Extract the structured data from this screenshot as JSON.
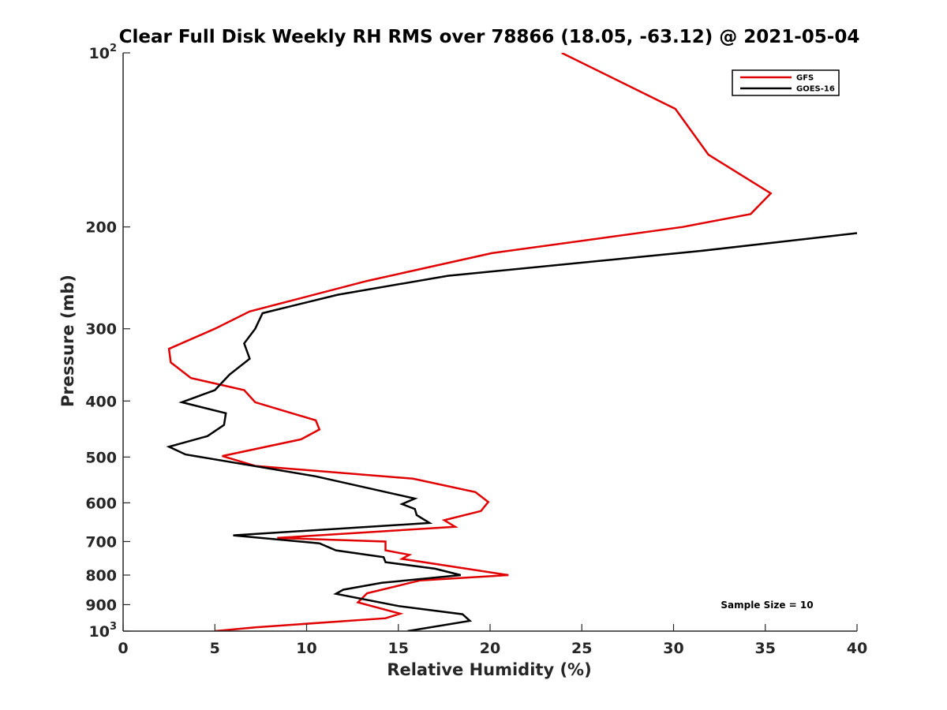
{
  "chart_data": {
    "type": "line",
    "title": "Clear Full Disk Weekly RH RMS over 78866 (18.05, -63.12) @ 2021-05-04",
    "xlabel": "Relative Humidity (%)",
    "ylabel": "Pressure (mb)",
    "xlim": [
      0,
      40
    ],
    "ylim": [
      100,
      1000
    ],
    "y_scale": "log",
    "y_reversed": true,
    "x_ticks": [
      "0",
      "5",
      "10",
      "15",
      "20",
      "25",
      "30",
      "35",
      "40"
    ],
    "y_ticks": [
      {
        "value": 100,
        "label": "10",
        "sup": "2"
      },
      {
        "value": 200,
        "label": "200",
        "sup": ""
      },
      {
        "value": 300,
        "label": "300",
        "sup": ""
      },
      {
        "value": 400,
        "label": "400",
        "sup": ""
      },
      {
        "value": 500,
        "label": "500",
        "sup": ""
      },
      {
        "value": 600,
        "label": "600",
        "sup": ""
      },
      {
        "value": 700,
        "label": "700",
        "sup": ""
      },
      {
        "value": 800,
        "label": "800",
        "sup": ""
      },
      {
        "value": 900,
        "label": "900",
        "sup": ""
      },
      {
        "value": 1000,
        "label": "10",
        "sup": "3"
      }
    ],
    "grid": false,
    "legend_position": "top-right",
    "series": [
      {
        "name": "GFS",
        "color": "#e00000",
        "points": [
          [
            23.9,
            100
          ],
          [
            30.1,
            125
          ],
          [
            31.9,
            150
          ],
          [
            35.3,
            175
          ],
          [
            34.2,
            190
          ],
          [
            30.5,
            200
          ],
          [
            20.1,
            222
          ],
          [
            13.3,
            248
          ],
          [
            6.9,
            280
          ],
          [
            5.0,
            300
          ],
          [
            2.5,
            325
          ],
          [
            2.6,
            343
          ],
          [
            3.7,
            365
          ],
          [
            6.6,
            383
          ],
          [
            7.2,
            402
          ],
          [
            10.5,
            432
          ],
          [
            10.7,
            448
          ],
          [
            9.7,
            466
          ],
          [
            5.4,
            498
          ],
          [
            7.2,
            518
          ],
          [
            15.8,
            545
          ],
          [
            19.2,
            575
          ],
          [
            19.9,
            598
          ],
          [
            19.5,
            620
          ],
          [
            17.5,
            643
          ],
          [
            18.1,
            660
          ],
          [
            8.4,
            690
          ],
          [
            14.3,
            700
          ],
          [
            14.3,
            725
          ],
          [
            15.6,
            738
          ],
          [
            15.2,
            750
          ],
          [
            21.0,
            800
          ],
          [
            16.2,
            817
          ],
          [
            13.3,
            860
          ],
          [
            12.8,
            892
          ],
          [
            15.1,
            933
          ],
          [
            14.3,
            950
          ],
          [
            7.2,
            985
          ],
          [
            5.0,
            1000
          ]
        ]
      },
      {
        "name": "GOES-16",
        "color": "#000000",
        "points": [
          [
            40.0,
            205
          ],
          [
            31.5,
            220
          ],
          [
            17.7,
            243
          ],
          [
            11.7,
            262
          ],
          [
            7.6,
            282
          ],
          [
            7.2,
            300
          ],
          [
            6.6,
            318
          ],
          [
            6.9,
            338
          ],
          [
            5.8,
            360
          ],
          [
            5.0,
            383
          ],
          [
            3.2,
            402
          ],
          [
            5.6,
            420
          ],
          [
            5.5,
            440
          ],
          [
            4.6,
            460
          ],
          [
            2.5,
            480
          ],
          [
            3.4,
            495
          ],
          [
            10.5,
            540
          ],
          [
            15.9,
            590
          ],
          [
            15.2,
            603
          ],
          [
            15.9,
            615
          ],
          [
            16.0,
            630
          ],
          [
            16.7,
            650
          ],
          [
            6.0,
            683
          ],
          [
            10.7,
            705
          ],
          [
            11.6,
            725
          ],
          [
            14.2,
            745
          ],
          [
            14.3,
            760
          ],
          [
            17.0,
            780
          ],
          [
            18.4,
            800
          ],
          [
            14.1,
            825
          ],
          [
            12.0,
            848
          ],
          [
            11.6,
            862
          ],
          [
            15.0,
            905
          ],
          [
            18.5,
            935
          ],
          [
            18.9,
            960
          ],
          [
            15.5,
            1000
          ]
        ]
      }
    ],
    "annotation": "Sample Size = 10"
  }
}
